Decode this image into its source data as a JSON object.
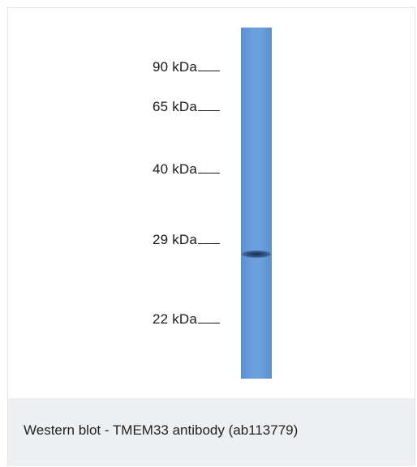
{
  "markers": [
    {
      "label": "90 kDa"
    },
    {
      "label": "65 kDa"
    },
    {
      "label": "40 kDa"
    },
    {
      "label": "29 kDa"
    },
    {
      "label": "22 kDa"
    }
  ],
  "lane": {
    "color": "#6a9fdd",
    "band_color": "#1e3a60"
  },
  "caption": "Western blot - TMEM33 antibody (ab113779)"
}
